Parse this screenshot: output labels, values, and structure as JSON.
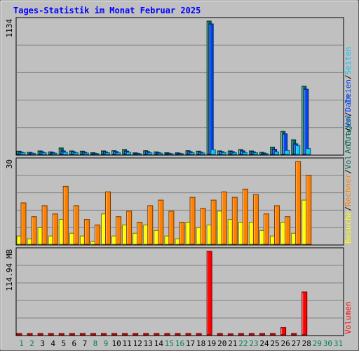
{
  "chart_data": {
    "type": "bar",
    "title": "Tages-Statistik im Monat Februar 2025",
    "categories": [
      "1",
      "2",
      "3",
      "4",
      "5",
      "6",
      "7",
      "8",
      "9",
      "10",
      "11",
      "12",
      "13",
      "14",
      "15",
      "16",
      "17",
      "18",
      "19",
      "20",
      "21",
      "22",
      "23",
      "24",
      "25",
      "26",
      "27",
      "28",
      "29",
      "30",
      "31"
    ],
    "weekend_days": [
      "1",
      "2",
      "8",
      "9",
      "15",
      "16",
      "22",
      "23"
    ],
    "future_days": [
      "29",
      "30",
      "31"
    ],
    "colors": {
      "anfragen": "#006c53",
      "dateien": "#0044ee",
      "seiten": "#00c8ff",
      "besuche": "#ffff00",
      "rechner": "#ff8000",
      "volumen": "#ff0000",
      "weekday_label": "#000000",
      "weekend_label": "#00805c",
      "future_label": "#00805c",
      "title": "#0000ff"
    },
    "panels": [
      {
        "id": "hits",
        "max_label": "1134",
        "ymax": 1134,
        "series": [
          {
            "name": "Anfragen",
            "color_key": "anfragen",
            "values": [
              28,
              18,
              30,
              22,
              55,
              30,
              28,
              15,
              30,
              32,
              42,
              14,
              32,
              22,
              15,
              14,
              32,
              28,
              1134,
              30,
              30,
              42,
              30,
              18,
              62,
              196,
              125,
              580,
              0,
              0,
              0
            ]
          },
          {
            "name": "Dateien",
            "color_key": "dateien",
            "values": [
              20,
              12,
              22,
              16,
              30,
              22,
              20,
              10,
              22,
              24,
              28,
              10,
              24,
              16,
              10,
              10,
              24,
              20,
              1110,
              24,
              24,
              30,
              22,
              12,
              44,
              175,
              90,
              555,
              0,
              0,
              0
            ]
          },
          {
            "name": "Seiten",
            "color_key": "seiten",
            "values": [
              14,
              8,
              14,
              10,
              18,
              14,
              12,
              6,
              14,
              14,
              18,
              6,
              14,
              10,
              6,
              6,
              14,
              12,
              40,
              16,
              14,
              16,
              14,
              6,
              22,
              34,
              76,
              50,
              0,
              0,
              0
            ]
          }
        ]
      },
      {
        "id": "visits",
        "max_label": "30",
        "ymax": 30,
        "series": [
          {
            "name": "Besuche",
            "color_key": "besuche",
            "values": [
              3,
              2,
              6,
              3,
              9,
              4,
              3,
              1,
              11,
              3,
              7,
              4,
              7,
              5,
              3,
              2,
              8,
              6,
              7,
              12,
              9,
              8,
              8,
              5,
              3,
              8,
              4,
              16,
              0,
              0,
              0
            ]
          },
          {
            "name": "Rechner",
            "color_key": "rechner",
            "values": [
              15,
              10,
              14,
              11,
              21,
              14,
              9,
              7,
              19,
              10,
              12,
              8,
              14,
              16,
              12,
              8,
              17,
              13,
              16,
              19,
              17,
              20,
              18,
              11,
              14,
              10,
              30,
              25,
              0,
              0,
              0
            ]
          }
        ]
      },
      {
        "id": "volume",
        "max_label": "114.94 MB",
        "ymax": 114.94,
        "series": [
          {
            "name": "Volumen",
            "color_key": "volumen",
            "unit": "MB",
            "values": [
              0.4,
              0.4,
              0.4,
              0.4,
              0.4,
              0.4,
              0.4,
              0.4,
              0.4,
              0.4,
              0.4,
              0.4,
              0.4,
              0.4,
              0.4,
              0.4,
              0.4,
              0.4,
              114.94,
              0.4,
              1.5,
              0.4,
              0.4,
              0.4,
              0.4,
              10,
              0.4,
              59,
              0,
              0,
              0
            ]
          }
        ]
      }
    ],
    "right_labels": {
      "hits": [
        {
          "text": "Anfragen",
          "color_key": "anfragen"
        },
        {
          "text": "Dateien",
          "color_key": "dateien"
        },
        {
          "text": "Seiten",
          "color_key": "seiten"
        }
      ],
      "visits": [
        {
          "text": "Besuche",
          "color_key": "besuche"
        },
        {
          "text": "Rechner",
          "color_key": "rechner"
        },
        {
          "text": "Vol. Out",
          "color_key": "anfragen"
        },
        {
          "text": "Vol. In",
          "color_key": "dateien"
        }
      ],
      "volume": [
        {
          "text": "Volumen",
          "color_key": "volumen"
        }
      ],
      "separator": "/"
    }
  }
}
